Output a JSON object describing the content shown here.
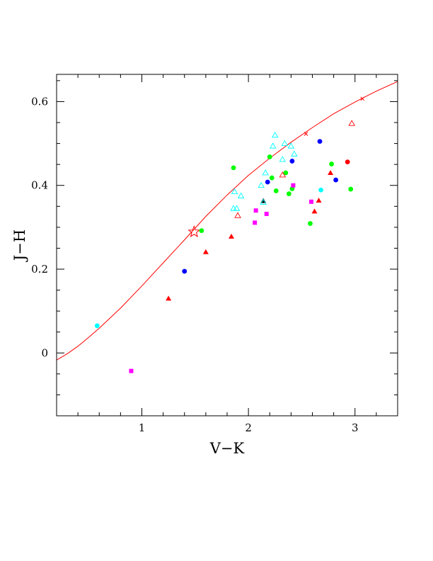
{
  "chart_data": {
    "type": "scatter",
    "title": "",
    "xlabel": "V−K",
    "ylabel": "J−H",
    "xlim": [
      0.2,
      3.4
    ],
    "ylim": [
      -0.15,
      0.665
    ],
    "x_ticks": [
      {
        "value": 1,
        "label": "1"
      },
      {
        "value": 2,
        "label": "2"
      },
      {
        "value": 3,
        "label": "3"
      }
    ],
    "y_ticks": [
      {
        "value": 0,
        "label": "0"
      },
      {
        "value": 0.2,
        "label": "0.2"
      },
      {
        "value": 0.4,
        "label": "0.4"
      },
      {
        "value": 0.6,
        "label": "0.6"
      }
    ],
    "grid": false,
    "legend": "none",
    "curve": {
      "color": "#ff0000",
      "x": [
        0.2,
        0.3,
        0.4,
        0.5,
        0.6,
        0.8,
        1.0,
        1.2,
        1.4,
        1.6,
        1.8,
        2.0,
        2.2,
        2.4,
        2.6,
        2.8,
        3.0,
        3.2,
        3.4
      ],
      "y": [
        -0.017,
        -0.002,
        0.016,
        0.037,
        0.059,
        0.107,
        0.16,
        0.215,
        0.27,
        0.326,
        0.377,
        0.424,
        0.465,
        0.503,
        0.538,
        0.571,
        0.599,
        0.625,
        0.648
      ],
      "cross_marks": [
        {
          "x": 2.54,
          "y": 0.523
        },
        {
          "x": 3.07,
          "y": 0.607
        }
      ]
    },
    "star": {
      "x": 1.49,
      "y": 0.289,
      "color": "#ff0000"
    },
    "series": [
      {
        "marker": "filled-circle",
        "color": "#00ff00",
        "points": [
          {
            "x": 1.56,
            "y": 0.292
          },
          {
            "x": 1.86,
            "y": 0.442
          },
          {
            "x": 2.2,
            "y": 0.468
          },
          {
            "x": 2.22,
            "y": 0.418
          },
          {
            "x": 2.26,
            "y": 0.387
          },
          {
            "x": 2.35,
            "y": 0.43
          },
          {
            "x": 2.38,
            "y": 0.38
          },
          {
            "x": 2.41,
            "y": 0.392
          },
          {
            "x": 2.58,
            "y": 0.309
          },
          {
            "x": 2.78,
            "y": 0.451
          },
          {
            "x": 2.96,
            "y": 0.391
          }
        ]
      },
      {
        "marker": "filled-circle",
        "color": "#0000ff",
        "points": [
          {
            "x": 1.4,
            "y": 0.195
          },
          {
            "x": 2.18,
            "y": 0.408
          },
          {
            "x": 2.41,
            "y": 0.458
          },
          {
            "x": 2.67,
            "y": 0.505
          },
          {
            "x": 2.82,
            "y": 0.413
          }
        ]
      },
      {
        "marker": "filled-circle",
        "color": "#00ffff",
        "points": [
          {
            "x": 0.58,
            "y": 0.065
          },
          {
            "x": 2.68,
            "y": 0.389
          }
        ]
      },
      {
        "marker": "filled-circle",
        "color": "#ff0000",
        "points": [
          {
            "x": 2.93,
            "y": 0.456
          }
        ]
      },
      {
        "marker": "filled-triangle",
        "color": "#ff0000",
        "points": [
          {
            "x": 1.25,
            "y": 0.13
          },
          {
            "x": 1.6,
            "y": 0.241
          },
          {
            "x": 1.84,
            "y": 0.278
          },
          {
            "x": 2.62,
            "y": 0.338
          },
          {
            "x": 2.66,
            "y": 0.364
          },
          {
            "x": 2.77,
            "y": 0.43
          }
        ]
      },
      {
        "marker": "filled-triangle",
        "color": "#000000",
        "points": [
          {
            "x": 2.14,
            "y": 0.363
          }
        ]
      },
      {
        "marker": "open-triangle",
        "color": "#00ffff",
        "points": [
          {
            "x": 1.86,
            "y": 0.345
          },
          {
            "x": 1.89,
            "y": 0.345
          },
          {
            "x": 1.87,
            "y": 0.385
          },
          {
            "x": 1.93,
            "y": 0.375
          },
          {
            "x": 2.12,
            "y": 0.4
          },
          {
            "x": 2.16,
            "y": 0.43
          },
          {
            "x": 2.23,
            "y": 0.494
          },
          {
            "x": 2.25,
            "y": 0.52
          },
          {
            "x": 2.32,
            "y": 0.462
          },
          {
            "x": 2.34,
            "y": 0.5
          },
          {
            "x": 2.4,
            "y": 0.494
          },
          {
            "x": 2.43,
            "y": 0.475
          },
          {
            "x": 2.14,
            "y": 0.36
          }
        ]
      },
      {
        "marker": "open-triangle",
        "color": "#ff0000",
        "points": [
          {
            "x": 1.9,
            "y": 0.328
          },
          {
            "x": 2.32,
            "y": 0.425
          },
          {
            "x": 2.97,
            "y": 0.548
          }
        ]
      },
      {
        "marker": "filled-square",
        "color": "#ff00ff",
        "points": [
          {
            "x": 0.9,
            "y": -0.043
          },
          {
            "x": 2.06,
            "y": 0.311
          },
          {
            "x": 2.07,
            "y": 0.34
          },
          {
            "x": 2.17,
            "y": 0.332
          },
          {
            "x": 2.42,
            "y": 0.4
          },
          {
            "x": 2.59,
            "y": 0.361
          }
        ]
      }
    ]
  }
}
